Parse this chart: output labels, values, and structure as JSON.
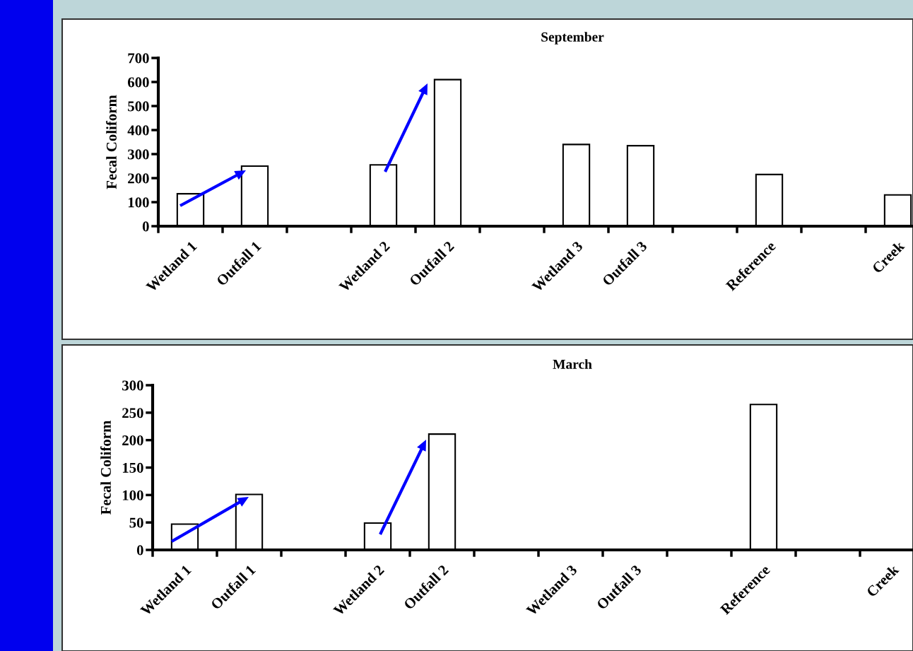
{
  "chart_data": [
    {
      "type": "bar",
      "title": "September",
      "ylabel": "Fecal Coliform",
      "categories": [
        "Wetland 1",
        "Outfall 1",
        null,
        "Wetland 2",
        "Outfall 2",
        null,
        "Wetland 3",
        "Outfall 3",
        null,
        "Reference",
        null,
        "Creek"
      ],
      "series": [
        {
          "color": "#ffffff",
          "values": [
            135,
            250,
            null,
            255,
            610,
            null,
            340,
            335,
            null,
            215,
            null,
            130
          ]
        }
      ],
      "ylim": [
        0,
        700
      ],
      "yticks": [
        0,
        100,
        200,
        300,
        400,
        500,
        600,
        700
      ]
    },
    {
      "type": "bar",
      "title": "March",
      "ylabel": "Fecal Coliform",
      "categories": [
        "Wetland 1",
        "Outfall 1",
        null,
        "Wetland 2",
        "Outfall 2",
        null,
        "Wetland 3",
        "Outfall 3",
        null,
        "Reference",
        null,
        "Creek"
      ],
      "series": [
        {
          "color": "#ffffff",
          "values": [
            47,
            101,
            null,
            49,
            211,
            null,
            null,
            null,
            null,
            265,
            null,
            null
          ]
        }
      ],
      "ylim": [
        0,
        300
      ],
      "yticks": [
        0,
        50,
        100,
        150,
        200,
        250,
        300
      ]
    }
  ]
}
